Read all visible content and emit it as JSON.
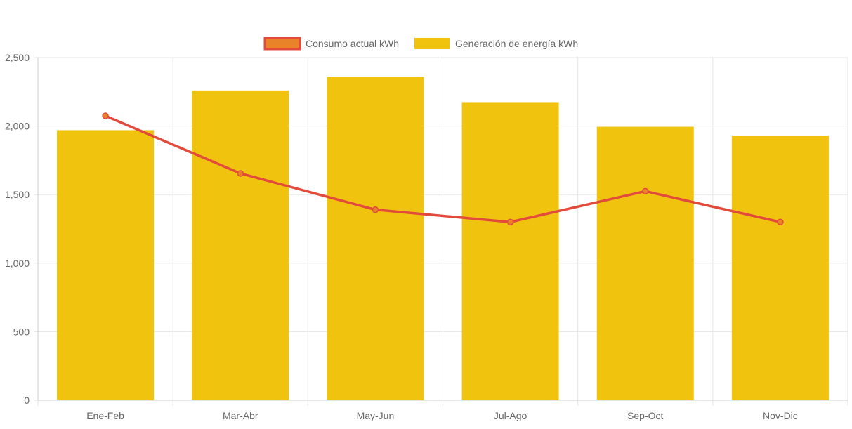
{
  "chart_data": {
    "type": "bar",
    "categories": [
      "Ene-Feb",
      "Mar-Abr",
      "May-Jun",
      "Jul-Ago",
      "Sep-Oct",
      "Nov-Dic"
    ],
    "series": [
      {
        "name": "Consumo actual kWh",
        "type": "line",
        "values": [
          2075,
          1655,
          1390,
          1300,
          1525,
          1300
        ],
        "color": "#e24a3b",
        "marker_color": "#e8832a"
      },
      {
        "name": "Generación de energía kWh",
        "type": "bar",
        "values": [
          1970,
          2260,
          2360,
          2175,
          1995,
          1930
        ],
        "color": "#f0c30f"
      }
    ],
    "ylim": [
      0,
      2500
    ],
    "yticks": [
      0,
      500,
      1000,
      1500,
      2000,
      2500
    ],
    "ytick_labels": [
      "0",
      "500",
      "1,000",
      "1,500",
      "2,000",
      "2,500"
    ],
    "grid": true,
    "legend_position": "top-center",
    "title": "",
    "xlabel": "",
    "ylabel": ""
  }
}
